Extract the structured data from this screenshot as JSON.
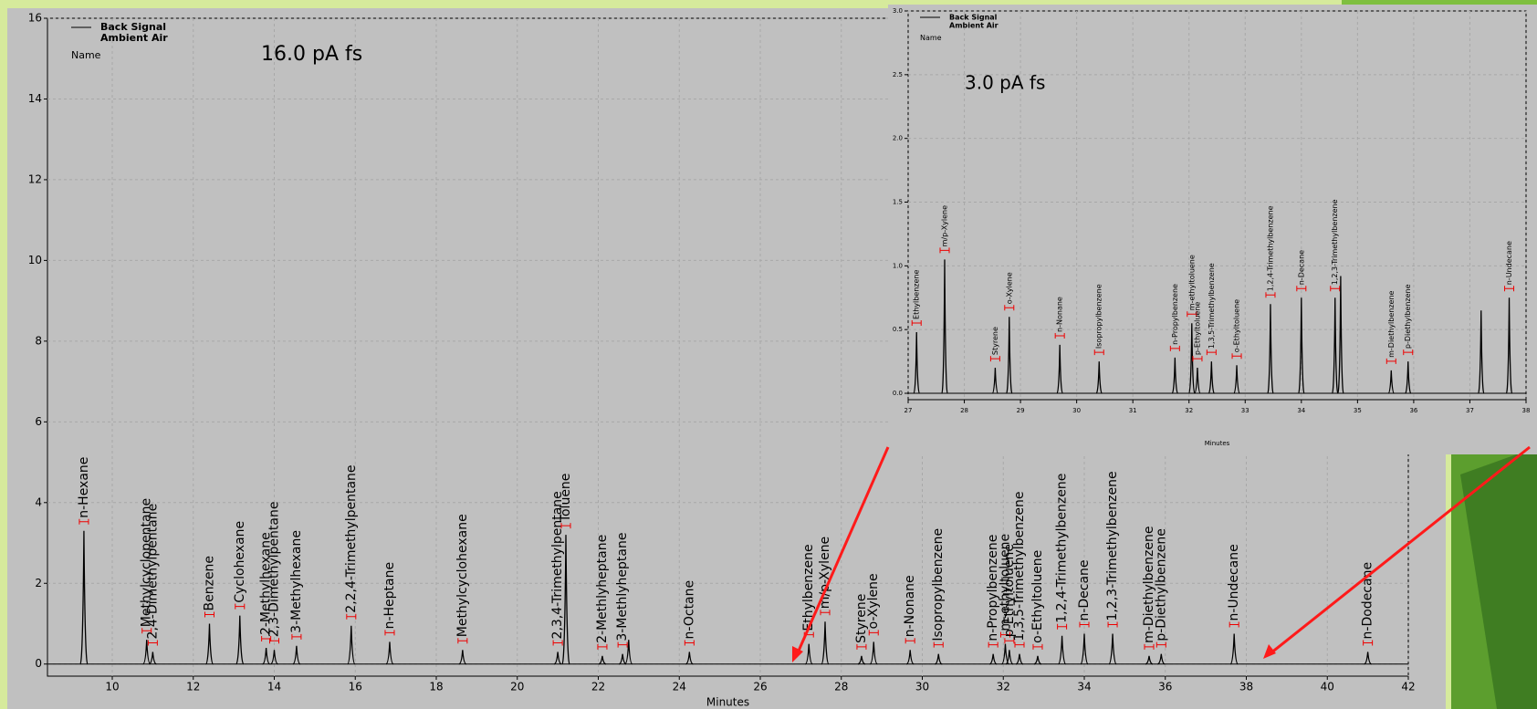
{
  "chart_data": [
    {
      "type": "chromatogram",
      "annotation": "16.0 pA fs",
      "legend_lines": [
        "Back Signal",
        "Ambient Air",
        "Name"
      ],
      "x_label": "Minutes",
      "color": "#000000",
      "xlim": [
        8.4,
        42
      ],
      "xticks": [
        10,
        12,
        14,
        16,
        18,
        20,
        22,
        24,
        26,
        28,
        30,
        32,
        34,
        36,
        38,
        40,
        42
      ],
      "ylim": [
        -0.3,
        16
      ],
      "yticks": [
        0,
        2,
        4,
        6,
        8,
        10,
        12,
        14,
        16
      ],
      "peaks": [
        {
          "name": "n-Hexane",
          "x": 9.3,
          "height": 3.3
        },
        {
          "name": "Methylcyclopentane",
          "x": 10.85,
          "height": 0.6
        },
        {
          "name": "2,4-Dimethylpentane",
          "x": 11.0,
          "height": 0.3
        },
        {
          "name": "Benzene",
          "x": 12.4,
          "height": 1.0
        },
        {
          "name": "Cyclohexane",
          "x": 13.15,
          "height": 1.2
        },
        {
          "name": "2-Methylhexane",
          "x": 13.8,
          "height": 0.4
        },
        {
          "name": "2,3-Dimethylpentane",
          "x": 14.0,
          "height": 0.35
        },
        {
          "name": "3-Methylhexane",
          "x": 14.55,
          "height": 0.45
        },
        {
          "name": "2,2,4-Trimethylpentane",
          "x": 15.9,
          "height": 0.95
        },
        {
          "name": "n-Heptane",
          "x": 16.85,
          "height": 0.55
        },
        {
          "name": "Methylcyclohexane",
          "x": 18.65,
          "height": 0.35
        },
        {
          "name": "2,3,4-Trimethylpentane",
          "x": 21.0,
          "height": 0.3
        },
        {
          "name": "Toluene",
          "x": 21.2,
          "height": 3.2
        },
        {
          "name": "2-Methlyheptane",
          "x": 22.1,
          "height": 0.2
        },
        {
          "name": "3-Methlyheptane",
          "x": 22.6,
          "height": 0.25
        },
        {
          "name": null,
          "x": 22.75,
          "height": 0.6
        },
        {
          "name": "n-Octane",
          "x": 24.25,
          "height": 0.3
        },
        {
          "name": "Ethylbenzene",
          "x": 27.2,
          "height": 0.5
        },
        {
          "name": "m/p-Xylene",
          "x": 27.6,
          "height": 1.05
        },
        {
          "name": "Styrene",
          "x": 28.5,
          "height": 0.2
        },
        {
          "name": "o-Xylene",
          "x": 28.8,
          "height": 0.55
        },
        {
          "name": "n-Nonane",
          "x": 29.7,
          "height": 0.35
        },
        {
          "name": "Isopropylbenzene",
          "x": 30.4,
          "height": 0.25
        },
        {
          "name": "n-Propylbenzene",
          "x": 31.75,
          "height": 0.25
        },
        {
          "name": "m-ethyltoluene",
          "x": 32.05,
          "height": 0.5
        },
        {
          "name": "p-Ethyltoluene",
          "x": 32.15,
          "height": 0.35
        },
        {
          "name": "1,3,5-Trimethylbenzene",
          "x": 32.4,
          "height": 0.25
        },
        {
          "name": "o-Ethyltoluene",
          "x": 32.85,
          "height": 0.2
        },
        {
          "name": "1,2,4-Trimethylbenzene",
          "x": 33.45,
          "height": 0.7
        },
        {
          "name": "n-Decane",
          "x": 34.0,
          "height": 0.75
        },
        {
          "name": "1,2,3-Trimethylbenzene",
          "x": 34.7,
          "height": 0.75
        },
        {
          "name": "m-Diethylbenzene",
          "x": 35.6,
          "height": 0.2
        },
        {
          "name": "p-Diethylbenzene",
          "x": 35.9,
          "height": 0.25
        },
        {
          "name": "n-Undecane",
          "x": 37.7,
          "height": 0.75
        },
        {
          "name": "n-Dodecane",
          "x": 41.0,
          "height": 0.3
        }
      ]
    },
    {
      "type": "chromatogram",
      "annotation": "3.0 pA fs",
      "legend_lines": [
        "Back Signal",
        "Ambient Air",
        "Name"
      ],
      "x_label": "Minutes",
      "color": "#000000",
      "xlim": [
        27,
        38
      ],
      "xticks": [
        27,
        28,
        29,
        30,
        31,
        32,
        33,
        34,
        35,
        36,
        37,
        38
      ],
      "ylim": [
        -0.05,
        3.0
      ],
      "yticks": [
        {
          "value": 0,
          "label": "0.0"
        },
        {
          "value": 0.5,
          "label": "0.5"
        },
        {
          "value": 1,
          "label": "1.0"
        },
        {
          "value": 1.5,
          "label": "1.5"
        },
        {
          "value": 2,
          "label": "2.0"
        },
        {
          "value": 2.5,
          "label": "2.5"
        },
        {
          "value": 3,
          "label": "3.0"
        }
      ],
      "peaks": [
        {
          "name": "Ethylbenzene",
          "x": 27.15,
          "height": 0.48
        },
        {
          "name": "m/p-Xylene",
          "x": 27.65,
          "height": 1.05
        },
        {
          "name": "Styrene",
          "x": 28.55,
          "height": 0.2
        },
        {
          "name": "o-Xylene",
          "x": 28.8,
          "height": 0.6
        },
        {
          "name": "n-Nonane",
          "x": 29.7,
          "height": 0.38
        },
        {
          "name": "Isopropylbenzene",
          "x": 30.4,
          "height": 0.25
        },
        {
          "name": "n-Propylbenzene",
          "x": 31.75,
          "height": 0.28
        },
        {
          "name": "m-ethyltoluene",
          "x": 32.05,
          "height": 0.55
        },
        {
          "name": "p-Ethyltoluene",
          "x": 32.15,
          "height": 0.2
        },
        {
          "name": "1,3,5-Trimethylbenzene",
          "x": 32.4,
          "height": 0.25
        },
        {
          "name": "o-Ethyltoluene",
          "x": 32.85,
          "height": 0.22
        },
        {
          "name": "1,2,4-Trimethylbenzene",
          "x": 33.45,
          "height": 0.7
        },
        {
          "name": "n-Decane",
          "x": 34.0,
          "height": 0.75
        },
        {
          "name": "1,2,3-Trimethylbenzene",
          "x": 34.6,
          "height": 0.75
        },
        {
          "name": null,
          "x": 34.7,
          "height": 0.92
        },
        {
          "name": "m-Diethylbenzene",
          "x": 35.6,
          "height": 0.18
        },
        {
          "name": "p-Diethylbenzene",
          "x": 35.9,
          "height": 0.25
        },
        {
          "name": null,
          "x": 37.2,
          "height": 0.65
        },
        {
          "name": "n-Undecane",
          "x": 37.7,
          "height": 0.75
        }
      ]
    }
  ]
}
